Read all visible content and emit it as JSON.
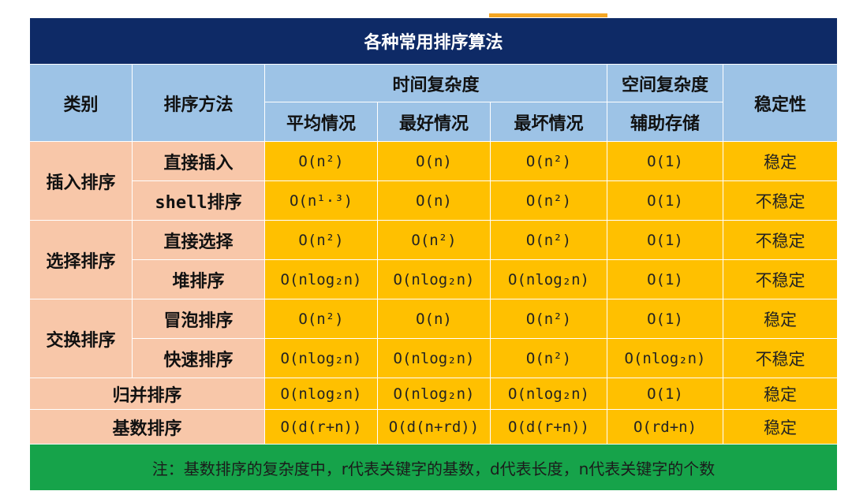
{
  "title": "各种常用排序算法",
  "headers": {
    "category": "类别",
    "method": "排序方法",
    "time": "时间复杂度",
    "space": "空间复杂度",
    "stability": "稳定性",
    "avg": "平均情况",
    "best": "最好情况",
    "worst": "最坏情况",
    "aux": "辅助存储"
  },
  "groups": {
    "insert": "插入排序",
    "select": "选择排序",
    "swap": "交换排序",
    "merge": "归并排序",
    "radix": "基数排序"
  },
  "rows": [
    {
      "method": "直接插入",
      "avg": "O(n²)",
      "best": "O(n)",
      "worst": "O(n²)",
      "aux": "O(1)",
      "stable": "稳定"
    },
    {
      "method": "shell排序",
      "avg": "O(n¹·³)",
      "best": "O(n)",
      "worst": "O(n²)",
      "aux": "O(1)",
      "stable": "不稳定"
    },
    {
      "method": "直接选择",
      "avg": "O(n²)",
      "best": "O(n²)",
      "worst": "O(n²)",
      "aux": "O(1)",
      "stable": "不稳定"
    },
    {
      "method": "堆排序",
      "avg": "O(nlog₂n)",
      "best": "O(nlog₂n)",
      "worst": "O(nlog₂n)",
      "aux": "O(1)",
      "stable": "不稳定"
    },
    {
      "method": "冒泡排序",
      "avg": "O(n²)",
      "best": "O(n)",
      "worst": "O(n²)",
      "aux": "O(1)",
      "stable": "稳定"
    },
    {
      "method": "快速排序",
      "avg": "O(nlog₂n)",
      "best": "O(nlog₂n)",
      "worst": "O(n²)",
      "aux": "O(nlog₂n)",
      "stable": "不稳定"
    },
    {
      "avg": "O(nlog₂n)",
      "best": "O(nlog₂n)",
      "worst": "O(nlog₂n)",
      "aux": "O(1)",
      "stable": "稳定"
    },
    {
      "avg": "O(d(r+n))",
      "best": "O(d(n+rd))",
      "worst": "O(d(r+n))",
      "aux": "O(rd+n)",
      "stable": "稳定"
    }
  ],
  "note": "注：基数排序的复杂度中，r代表关键字的基数，d代表长度，n代表关键字的个数"
}
